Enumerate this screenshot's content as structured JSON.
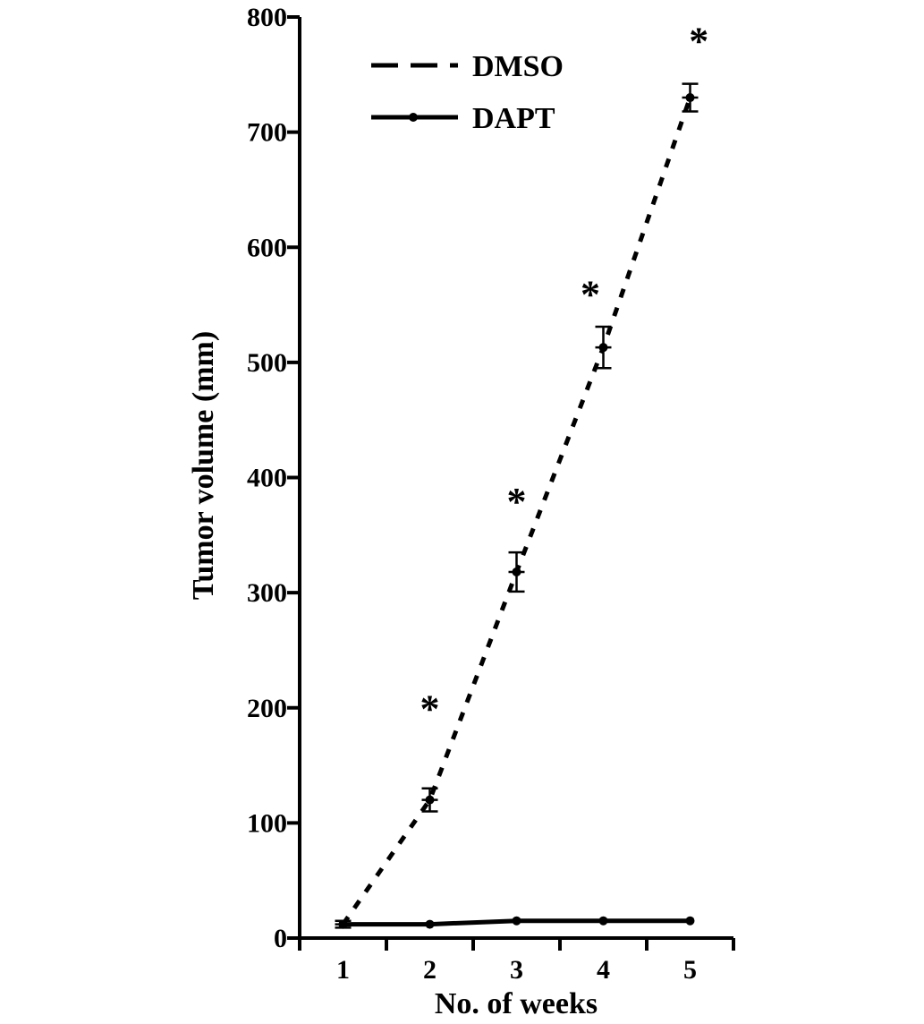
{
  "chart_data": {
    "type": "line",
    "xlabel": "No. of weeks",
    "ylabel": "Tumor volume (mm)",
    "xlim": [
      0.5,
      5.5
    ],
    "ylim": [
      0,
      800
    ],
    "x_ticks": [
      1,
      2,
      3,
      4,
      5
    ],
    "y_ticks": [
      0,
      100,
      200,
      300,
      400,
      500,
      600,
      700,
      800
    ],
    "grid": false,
    "legend_position": "top-left",
    "series": [
      {
        "name": "DMSO",
        "style": "dashed",
        "color": "#000000",
        "x": [
          1,
          2,
          3,
          4,
          5
        ],
        "values": [
          12,
          120,
          318,
          513,
          730
        ],
        "error": [
          3,
          10,
          17,
          18,
          12
        ]
      },
      {
        "name": "DAPT",
        "style": "solid",
        "color": "#000000",
        "x": [
          1,
          2,
          3,
          4,
          5
        ],
        "values": [
          12,
          12,
          15,
          15,
          15
        ],
        "error": [
          0,
          0,
          0,
          0,
          0
        ]
      }
    ],
    "annotations": [
      {
        "text": "*",
        "x": 2,
        "y": 205
      },
      {
        "text": "*",
        "x": 3,
        "y": 385
      },
      {
        "text": "*",
        "x": 3.85,
        "y": 565
      },
      {
        "text": "*",
        "x": 5.1,
        "y": 785
      }
    ]
  }
}
